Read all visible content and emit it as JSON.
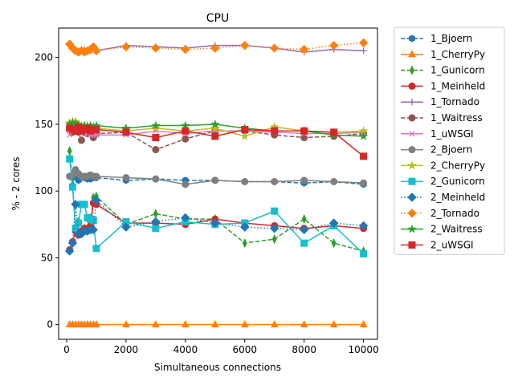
{
  "chart_data": {
    "type": "line",
    "title": "CPU",
    "xlabel": "Simultaneous connections",
    "ylabel": "% - 2 cores",
    "xlim": [
      -270,
      10470
    ],
    "ylim": [
      -11,
      222
    ],
    "xticks": [
      0,
      2000,
      4000,
      6000,
      8000,
      10000
    ],
    "yticks": [
      0,
      50,
      100,
      150,
      200
    ],
    "grid": false,
    "legend_position": "outside-right",
    "x": [
      100,
      200,
      300,
      400,
      500,
      600,
      700,
      800,
      900,
      1000,
      2000,
      3000,
      4000,
      5000,
      6000,
      7000,
      8000,
      9000,
      10000
    ],
    "series": [
      {
        "name": "1_Bjoern",
        "color": "#1f77b4",
        "style": "dashed",
        "marker": "hexagon",
        "values": [
          111,
          110,
          111,
          108,
          110,
          110,
          109,
          109,
          110,
          110,
          108,
          109,
          108,
          108,
          107,
          107,
          106,
          107,
          105
        ]
      },
      {
        "name": "1_CherryPy",
        "color": "#ff7f0e",
        "style": "solid",
        "marker": "triangle",
        "values": [
          0,
          0,
          0,
          0,
          0,
          0,
          0,
          0,
          0,
          0,
          0,
          0,
          0,
          0,
          0,
          0,
          0,
          0,
          0
        ]
      },
      {
        "name": "1_Gunicorn",
        "color": "#2ca02c",
        "style": "dashed",
        "marker": "thin_diamond",
        "values": [
          130,
          105,
          73,
          77,
          70,
          72,
          71,
          74,
          95,
          96,
          75,
          83,
          79,
          79,
          61,
          64,
          79,
          61,
          55
        ]
      },
      {
        "name": "1_Meinheld",
        "color": "#d62728",
        "style": "solid",
        "marker": "circle",
        "values": [
          56,
          62,
          70,
          67,
          70,
          72,
          72,
          74,
          91,
          90,
          76,
          76,
          75,
          79,
          76,
          74,
          72,
          74,
          72
        ]
      },
      {
        "name": "1_Tornado",
        "color": "#9467bd",
        "style": "solid",
        "marker": "plus",
        "values": [
          209,
          206,
          206,
          205,
          206,
          206,
          205,
          206,
          206,
          205,
          209,
          208,
          207,
          209,
          209,
          207,
          204,
          206,
          205
        ]
      },
      {
        "name": "1_Waitress",
        "color": "#8c564b",
        "style": "dashed",
        "marker": "circle",
        "values": [
          147,
          144,
          145,
          144,
          138,
          144,
          143,
          144,
          140,
          143,
          144,
          131,
          139,
          145,
          145,
          142,
          140,
          141,
          143
        ]
      },
      {
        "name": "1_uWSGI",
        "color": "#e377c2",
        "style": "solid",
        "marker": "x",
        "values": [
          142,
          145,
          145,
          144,
          143,
          143,
          143,
          142,
          142,
          142,
          142,
          145,
          143,
          145,
          145,
          144,
          143,
          143,
          144
        ]
      },
      {
        "name": "2_Bjoern",
        "color": "#7f7f7f",
        "style": "solid",
        "marker": "circle",
        "values": [
          111,
          112,
          116,
          113,
          111,
          111,
          111,
          112,
          111,
          111,
          110,
          109,
          105,
          108,
          107,
          107,
          108,
          107,
          106
        ]
      },
      {
        "name": "2_CherryPy",
        "color": "#bcbd22",
        "style": "solid",
        "marker": "star",
        "values": [
          151,
          152,
          152,
          150,
          149,
          149,
          149,
          148,
          148,
          147,
          145,
          147,
          145,
          147,
          141,
          148,
          145,
          144,
          145
        ]
      },
      {
        "name": "2_Gunicorn",
        "color": "#17becf",
        "style": "solid",
        "marker": "square",
        "values": [
          124,
          103,
          72,
          76,
          90,
          90,
          80,
          79,
          78,
          57,
          77,
          72,
          77,
          75,
          76,
          85,
          61,
          74,
          53
        ]
      },
      {
        "name": "2_Meinheld",
        "color": "#1f77b4",
        "style": "dotted",
        "marker": "diamond",
        "values": [
          55,
          61,
          90,
          68,
          68,
          70,
          70,
          71,
          71,
          93,
          73,
          77,
          80,
          76,
          73,
          72,
          71,
          76,
          74
        ]
      },
      {
        "name": "2_Tornado",
        "color": "#ff7f0e",
        "style": "dotted",
        "marker": "diamond",
        "values": [
          210,
          207,
          205,
          204,
          205,
          204,
          205,
          206,
          208,
          205,
          208,
          207,
          206,
          207,
          209,
          207,
          206,
          209,
          211
        ]
      },
      {
        "name": "2_Waitress",
        "color": "#2ca02c",
        "style": "solid",
        "marker": "star",
        "values": [
          150,
          151,
          151,
          149,
          148,
          149,
          148,
          149,
          148,
          149,
          147,
          149,
          149,
          150,
          147,
          145,
          145,
          142,
          141
        ]
      },
      {
        "name": "2_uWSGI",
        "color": "#d62728",
        "style": "solid",
        "marker": "square",
        "values": [
          147,
          146,
          145,
          148,
          145,
          146,
          147,
          145,
          146,
          146,
          144,
          140,
          145,
          141,
          146,
          145,
          145,
          144,
          126
        ]
      }
    ]
  }
}
